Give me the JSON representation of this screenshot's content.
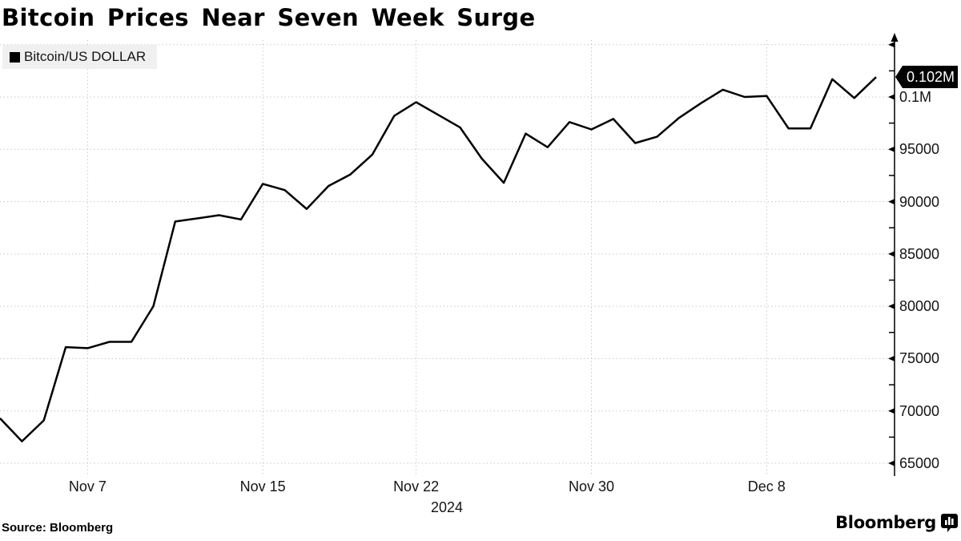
{
  "title": "Bitcoin Prices Near Seven Week Surge",
  "legend": {
    "label": "Bitcoin/US DOLLAR",
    "swatch_color": "#000000"
  },
  "source": "Source: Bloomberg",
  "branding": {
    "logo_text": "Bloomberg",
    "logo_icon": "chart-bubble-icon"
  },
  "chart_data": {
    "type": "line",
    "title": "Bitcoin Prices Near Seven Week Surge",
    "x": [
      "Nov 3",
      "Nov 4",
      "Nov 5",
      "Nov 6",
      "Nov 7",
      "Nov 8",
      "Nov 9",
      "Nov 10",
      "Nov 11",
      "Nov 12",
      "Nov 13",
      "Nov 14",
      "Nov 15",
      "Nov 16",
      "Nov 17",
      "Nov 18",
      "Nov 19",
      "Nov 20",
      "Nov 21",
      "Nov 22",
      "Nov 23",
      "Nov 24",
      "Nov 25",
      "Nov 26",
      "Nov 27",
      "Nov 28",
      "Nov 29",
      "Nov 30",
      "Dec 1",
      "Dec 2",
      "Dec 3",
      "Dec 4",
      "Dec 5",
      "Dec 6",
      "Dec 7",
      "Dec 8",
      "Dec 9",
      "Dec 10",
      "Dec 11",
      "Dec 12",
      "Dec 13"
    ],
    "series": [
      {
        "name": "Bitcoin/US DOLLAR",
        "color": "#000000",
        "values": [
          69300,
          67100,
          69100,
          76100,
          76000,
          76600,
          76600,
          80000,
          88100,
          88400,
          88700,
          88300,
          91700,
          91100,
          89300,
          91500,
          92600,
          94500,
          98200,
          99500,
          98300,
          97100,
          94100,
          91800,
          96500,
          95200,
          97600,
          96900,
          97900,
          95600,
          96200,
          98000,
          99400,
          100700,
          100000,
          100100,
          97000,
          97000,
          101700,
          99900,
          101900
        ]
      }
    ],
    "x_axis": {
      "year_label": "2024",
      "ticks": [
        {
          "label": "Nov 7",
          "index": 4
        },
        {
          "label": "Nov 15",
          "index": 12
        },
        {
          "label": "Nov 22",
          "index": 19
        },
        {
          "label": "Nov 30",
          "index": 27
        },
        {
          "label": "Dec 8",
          "index": 35
        }
      ]
    },
    "y_axis": {
      "side": "right",
      "range": [
        63700,
        105600
      ],
      "minor_step": 2500,
      "ticks": [
        {
          "value": 65000,
          "label": "65000"
        },
        {
          "value": 70000,
          "label": "70000"
        },
        {
          "value": 75000,
          "label": "75000"
        },
        {
          "value": 80000,
          "label": "80000"
        },
        {
          "value": 85000,
          "label": "85000"
        },
        {
          "value": 90000,
          "label": "90000"
        },
        {
          "value": 95000,
          "label": "95000"
        },
        {
          "value": 100000,
          "label": "0.1M"
        },
        {
          "value": 105000,
          "label": ""
        }
      ]
    },
    "last_value_label": "0.102M",
    "grid": "dotted",
    "legend_position": "top-left"
  }
}
